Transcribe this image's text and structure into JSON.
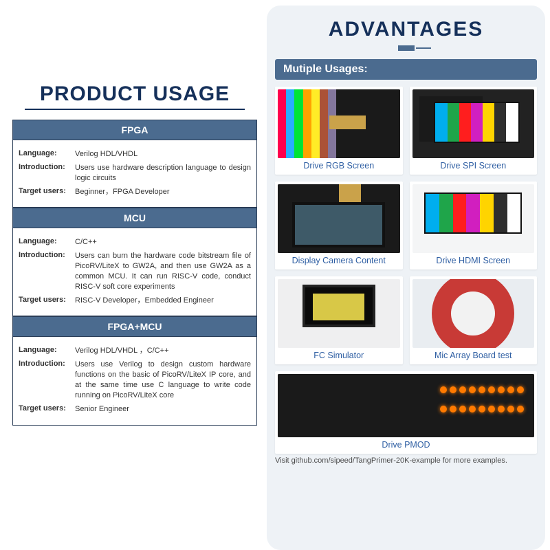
{
  "left": {
    "title": "PRODUCT USAGE",
    "sections": [
      {
        "header": "FPGA",
        "language": "Verilog HDL/VHDL",
        "intro": "Users use hardware description language to design logic circuits",
        "target": "Beginner，FPGA Developer"
      },
      {
        "header": "MCU",
        "language": "C/C++",
        "intro": "Users can burn the hardware code bitstream file of PicoRV/LiteX to GW2A, and then use GW2A as a common MCU. It can run RISC-V code, conduct RISC-V soft core experiments",
        "target": "RISC-V Developer，Embedded Engineer"
      },
      {
        "header": "FPGA+MCU",
        "language": "Verilog HDL/VHDL ，C/C++",
        "intro": "Users use Verilog to design custom hardware functions on the basic of PicoRV/LiteX IP core, and at the same time use C language to write code running on PicoRV/LiteX core",
        "target": "Senior Engineer"
      }
    ],
    "labels": {
      "language": "Language:",
      "intro": "Introduction:",
      "target": "Target users:"
    }
  },
  "right": {
    "title": "ADVANTAGES",
    "subhead": "Mutiple Usages:",
    "cards": [
      {
        "caption": "Drive RGB Screen"
      },
      {
        "caption": "Drive SPI Screen"
      },
      {
        "caption": "Display Camera Content"
      },
      {
        "caption": "Drive HDMI Screen"
      },
      {
        "caption": "FC Simulator"
      },
      {
        "caption": "Mic Array Board test"
      },
      {
        "caption": "Drive PMOD"
      }
    ],
    "footnote": "Visit github.com/sipeed/TangPrimer-20K-example for more examples.",
    "palette": {
      "colorbars": [
        "#00aeef",
        "#1fa54a",
        "#ff1e1e",
        "#d11fbf",
        "#ffd400",
        "#2e2e2e",
        "#ffffff"
      ],
      "rgb_stripes": [
        "#ff004d",
        "#29adff",
        "#00e436",
        "#ffa300",
        "#ffec27",
        "#ab5236",
        "#83769c"
      ]
    }
  },
  "colors": {
    "headline": "#15305a",
    "band": "#4b6b8f",
    "panel_bg": "#eef2f6",
    "caption": "#2f5fa3"
  }
}
